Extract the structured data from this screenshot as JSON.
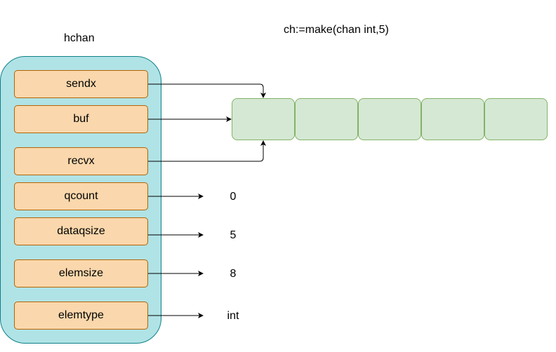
{
  "struct_title": "hchan",
  "make_expr": "ch:=make(chan int,5)",
  "fields": [
    {
      "label": "sendx"
    },
    {
      "label": "buf"
    },
    {
      "label": "recvx"
    },
    {
      "label": "qcount",
      "value": "0"
    },
    {
      "label": "dataqsize",
      "value": "5"
    },
    {
      "label": "elemsize",
      "value": "8"
    },
    {
      "label": "elemtype",
      "value": "int"
    }
  ],
  "buffer_slots": 5,
  "colors": {
    "container_fill": "#b0e3e6",
    "container_stroke": "#0e8088",
    "field_fill": "#fad7ac",
    "field_stroke": "#b46504",
    "slot_fill": "#d5e8d4",
    "slot_stroke": "#82b366"
  }
}
